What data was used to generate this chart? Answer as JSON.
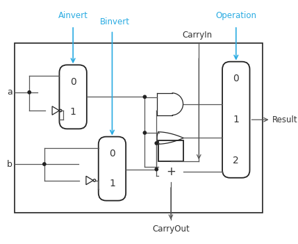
{
  "bg_color": "#ffffff",
  "box_color": "#222222",
  "wire_color": "#555555",
  "cyan_color": "#29abe2",
  "brown_color": "#5c3d1e",
  "text_color_dark": "#333333",
  "fig_width": 4.29,
  "fig_height": 3.51,
  "dpi": 100,
  "labels": {
    "Ainvert": "Ainvert",
    "Binvert": "Binvert",
    "CarryIn": "CarryIn",
    "Operation": "Operation",
    "Result": "Result",
    "CarryOut": "CarryOut",
    "a": "a",
    "b": "b",
    "plus": "+"
  }
}
